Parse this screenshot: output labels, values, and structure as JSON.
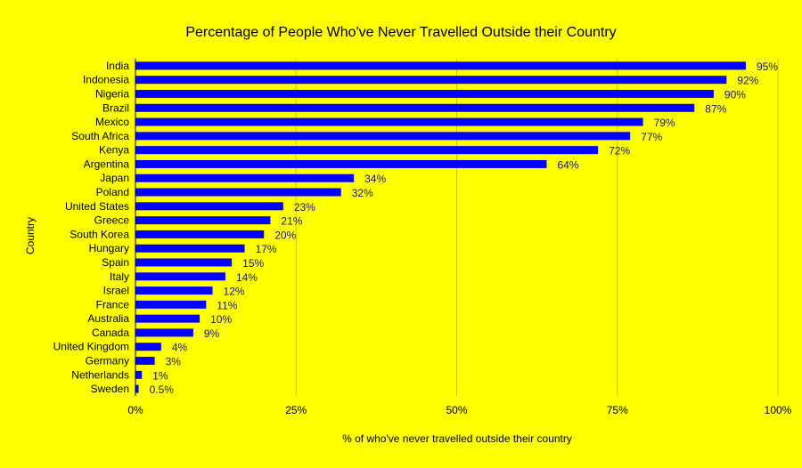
{
  "chart_data": {
    "type": "bar",
    "orientation": "horizontal",
    "title": "Percentage of People Who've Never Travelled Outside their Country",
    "xlabel": "% of who've never travelled outside their country",
    "ylabel": "Country",
    "xlim": [
      0,
      100
    ],
    "xticks": [
      0,
      25,
      50,
      75,
      100
    ],
    "xtick_labels": [
      "0%",
      "25%",
      "50%",
      "75%",
      "100%"
    ],
    "grid": "vertical",
    "legend": "none",
    "categories": [
      "India",
      "Indonesia",
      "Nigeria",
      "Brazil",
      "Mexico",
      "South Africa",
      "Kenya",
      "Argentina",
      "Japan",
      "Poland",
      "United States",
      "Greece",
      "South Korea",
      "Hungary",
      "Spain",
      "Italy",
      "Israel",
      "France",
      "Australia",
      "Canada",
      "United Kingdom",
      "Germany",
      "Netherlands",
      "Sweden"
    ],
    "values": [
      95,
      92,
      90,
      87,
      79,
      77,
      72,
      64,
      34,
      32,
      23,
      21,
      20,
      17,
      15,
      14,
      12,
      11,
      10,
      9,
      4,
      3,
      1,
      0.5
    ],
    "data_labels": [
      "95%",
      "92%",
      "90%",
      "87%",
      "79%",
      "77%",
      "72%",
      "64%",
      "34%",
      "32%",
      "23%",
      "21%",
      "20%",
      "17%",
      "15%",
      "14%",
      "12%",
      "11%",
      "10%",
      "9%",
      "4%",
      "3%",
      "1%",
      "0.5%"
    ],
    "colors": {
      "background": "#ffff00",
      "bar": "#0000ff",
      "grid": "#c8c800",
      "data_label": "#1a1a6e"
    }
  }
}
